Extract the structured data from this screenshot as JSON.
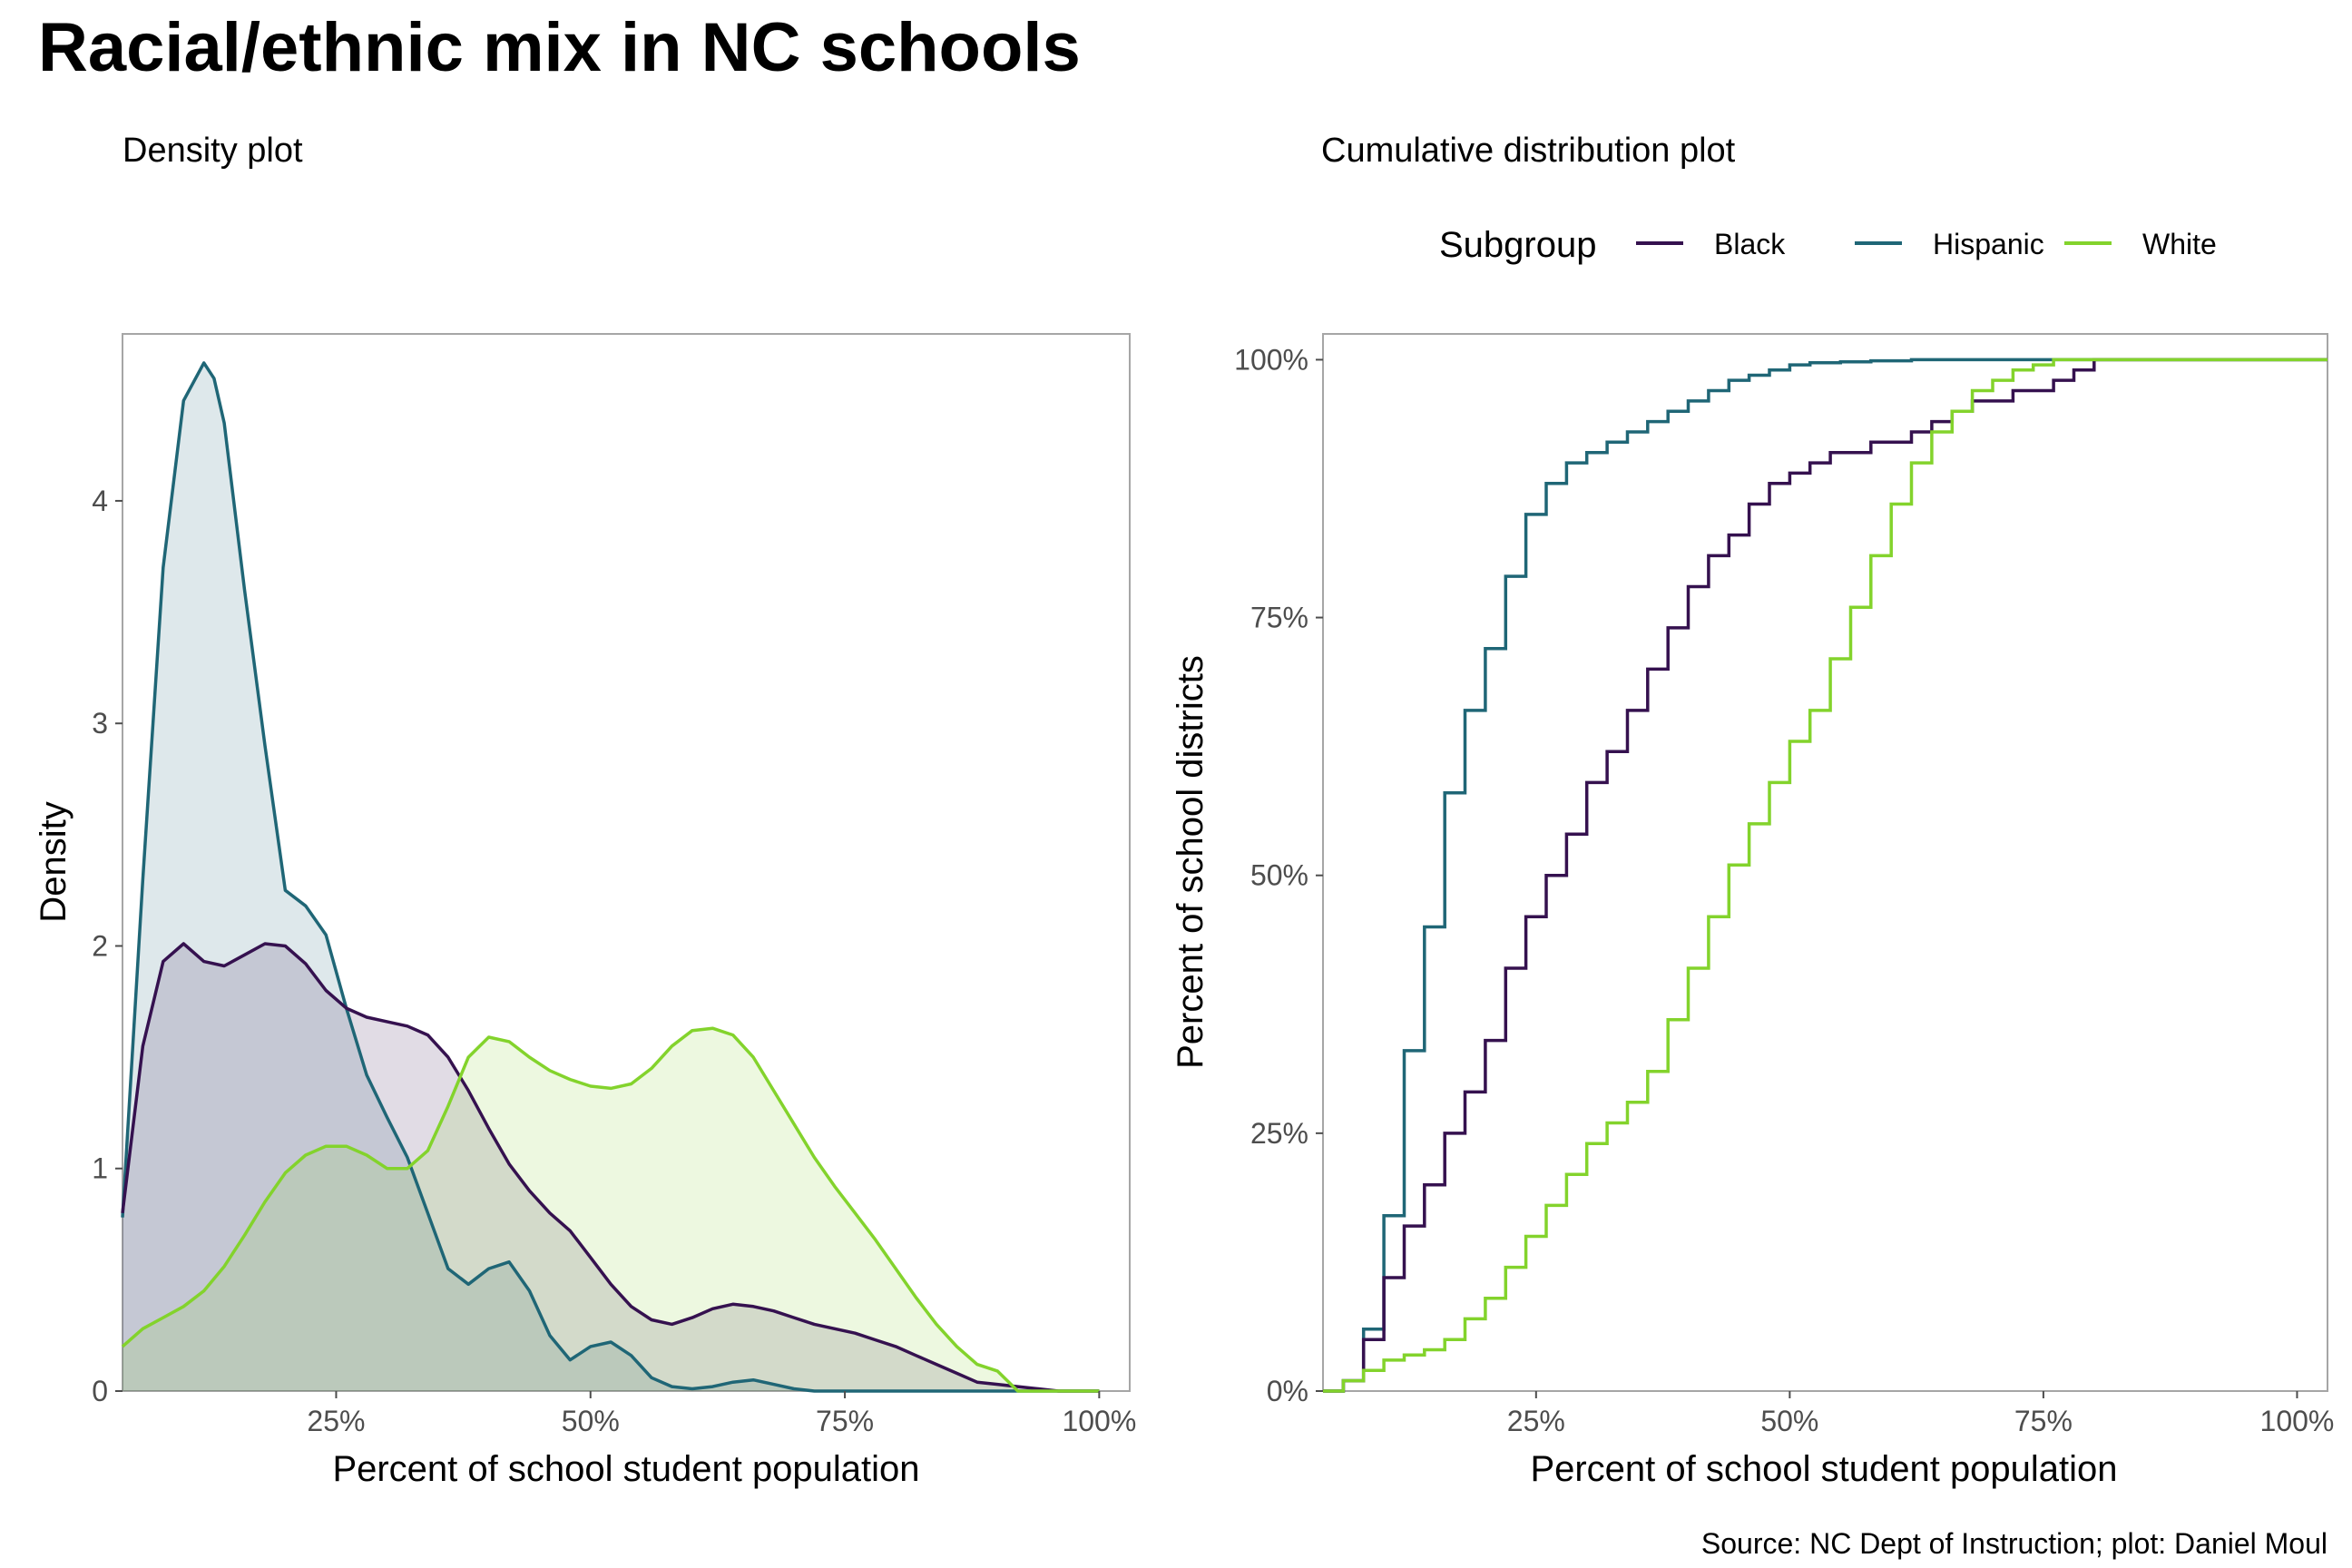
{
  "title": "Racial/ethnic mix in NC schools",
  "caption": "Source: NC Dept of Instruction; plot: Daniel Moul",
  "colors": {
    "Black": "#35114f",
    "Hispanic": "#1f6676",
    "White": "#83d32c",
    "panel_border": "#a6a6a6"
  },
  "legend": {
    "title": "Subgroup",
    "items": [
      "Black",
      "Hispanic",
      "White"
    ],
    "placement": "top, above right panel"
  },
  "chart_data": [
    {
      "type": "area",
      "subtitle": "Density plot",
      "xlabel": "Percent of school student population",
      "ylabel": "Density",
      "xlim": [
        0.04,
        1.03
      ],
      "ylim": [
        0,
        4.75
      ],
      "xticks": [
        0.25,
        0.5,
        0.75,
        1.0
      ],
      "xtick_labels": [
        "25%",
        "50%",
        "75%",
        "100%"
      ],
      "yticks": [
        0,
        1,
        2,
        3,
        4
      ],
      "ytick_labels": [
        "0",
        "1",
        "2",
        "3",
        "4"
      ],
      "grid": false,
      "series": [
        {
          "name": "Hispanic",
          "x": [
            0.04,
            0.06,
            0.08,
            0.1,
            0.12,
            0.13,
            0.14,
            0.16,
            0.18,
            0.2,
            0.22,
            0.24,
            0.26,
            0.28,
            0.3,
            0.32,
            0.34,
            0.36,
            0.38,
            0.4,
            0.42,
            0.44,
            0.46,
            0.48,
            0.5,
            0.52,
            0.54,
            0.56,
            0.58,
            0.6,
            0.62,
            0.64,
            0.66,
            0.68,
            0.7,
            0.72,
            0.74,
            0.76,
            0.8,
            0.9,
            1.0
          ],
          "y": [
            0.78,
            2.3,
            3.7,
            4.45,
            4.62,
            4.55,
            4.35,
            3.6,
            2.9,
            2.25,
            2.18,
            2.05,
            1.72,
            1.42,
            1.23,
            1.05,
            0.8,
            0.55,
            0.48,
            0.55,
            0.58,
            0.45,
            0.25,
            0.14,
            0.2,
            0.22,
            0.16,
            0.06,
            0.02,
            0.01,
            0.02,
            0.04,
            0.05,
            0.03,
            0.01,
            0.0,
            0.0,
            0.0,
            0.0,
            0.0,
            0.0
          ]
        },
        {
          "name": "Black",
          "x": [
            0.04,
            0.06,
            0.08,
            0.1,
            0.12,
            0.14,
            0.16,
            0.18,
            0.2,
            0.22,
            0.24,
            0.26,
            0.28,
            0.3,
            0.32,
            0.34,
            0.36,
            0.38,
            0.4,
            0.42,
            0.44,
            0.46,
            0.48,
            0.5,
            0.52,
            0.54,
            0.56,
            0.58,
            0.6,
            0.62,
            0.64,
            0.66,
            0.68,
            0.7,
            0.72,
            0.74,
            0.76,
            0.78,
            0.8,
            0.82,
            0.84,
            0.86,
            0.88,
            0.9,
            0.92,
            0.94,
            0.96,
            0.98,
            1.0
          ],
          "y": [
            0.8,
            1.55,
            1.93,
            2.01,
            1.93,
            1.91,
            1.96,
            2.01,
            2.0,
            1.92,
            1.8,
            1.72,
            1.68,
            1.66,
            1.64,
            1.6,
            1.5,
            1.35,
            1.18,
            1.02,
            0.9,
            0.8,
            0.72,
            0.6,
            0.48,
            0.38,
            0.32,
            0.3,
            0.33,
            0.37,
            0.39,
            0.38,
            0.36,
            0.33,
            0.3,
            0.28,
            0.26,
            0.23,
            0.2,
            0.16,
            0.12,
            0.08,
            0.04,
            0.03,
            0.02,
            0.01,
            0.0,
            0.0,
            0.0
          ]
        },
        {
          "name": "White",
          "x": [
            0.04,
            0.06,
            0.08,
            0.1,
            0.12,
            0.14,
            0.16,
            0.18,
            0.2,
            0.22,
            0.24,
            0.26,
            0.28,
            0.3,
            0.32,
            0.34,
            0.36,
            0.38,
            0.4,
            0.42,
            0.44,
            0.46,
            0.48,
            0.5,
            0.52,
            0.54,
            0.56,
            0.58,
            0.6,
            0.62,
            0.64,
            0.66,
            0.68,
            0.7,
            0.72,
            0.74,
            0.76,
            0.78,
            0.8,
            0.82,
            0.84,
            0.86,
            0.88,
            0.9,
            0.92,
            0.94,
            0.96,
            0.98,
            1.0
          ],
          "y": [
            0.2,
            0.28,
            0.33,
            0.38,
            0.45,
            0.56,
            0.7,
            0.85,
            0.98,
            1.06,
            1.1,
            1.1,
            1.06,
            1.0,
            1.0,
            1.08,
            1.28,
            1.5,
            1.59,
            1.57,
            1.5,
            1.44,
            1.4,
            1.37,
            1.36,
            1.38,
            1.45,
            1.55,
            1.62,
            1.63,
            1.6,
            1.5,
            1.35,
            1.2,
            1.05,
            0.92,
            0.8,
            0.68,
            0.55,
            0.42,
            0.3,
            0.2,
            0.12,
            0.09,
            0.0,
            0.0,
            0.0,
            0.0,
            0.0
          ]
        }
      ]
    },
    {
      "type": "line",
      "subtitle": "Cumulative distribution plot",
      "xlabel": "Percent of school student population",
      "ylabel": "Percent of school districts",
      "xlim": [
        0.04,
        1.03
      ],
      "ylim": [
        0,
        1.025
      ],
      "xticks": [
        0.25,
        0.5,
        0.75,
        1.0
      ],
      "xtick_labels": [
        "25%",
        "50%",
        "75%",
        "100%"
      ],
      "yticks": [
        0,
        0.25,
        0.5,
        0.75,
        1.0
      ],
      "ytick_labels": [
        "0%",
        "25%",
        "50%",
        "75%",
        "100%"
      ],
      "grid": false,
      "series": [
        {
          "name": "Hispanic",
          "x": [
            0.04,
            0.06,
            0.08,
            0.1,
            0.12,
            0.14,
            0.16,
            0.18,
            0.2,
            0.22,
            0.24,
            0.26,
            0.28,
            0.3,
            0.32,
            0.34,
            0.36,
            0.38,
            0.4,
            0.42,
            0.44,
            0.46,
            0.48,
            0.5,
            0.52,
            0.55,
            0.58,
            0.62,
            0.66,
            0.7,
            0.8,
            1.0
          ],
          "y": [
            0.0,
            0.01,
            0.06,
            0.17,
            0.33,
            0.45,
            0.58,
            0.66,
            0.72,
            0.79,
            0.85,
            0.88,
            0.9,
            0.91,
            0.92,
            0.93,
            0.94,
            0.95,
            0.96,
            0.97,
            0.98,
            0.985,
            0.99,
            0.995,
            0.997,
            0.998,
            0.999,
            1.0,
            1.0,
            1.0,
            1.0,
            1.0
          ]
        },
        {
          "name": "Black",
          "x": [
            0.04,
            0.06,
            0.08,
            0.1,
            0.12,
            0.14,
            0.16,
            0.18,
            0.2,
            0.22,
            0.24,
            0.26,
            0.28,
            0.3,
            0.32,
            0.34,
            0.36,
            0.38,
            0.4,
            0.42,
            0.44,
            0.46,
            0.48,
            0.5,
            0.52,
            0.54,
            0.56,
            0.58,
            0.6,
            0.62,
            0.64,
            0.66,
            0.68,
            0.7,
            0.72,
            0.74,
            0.76,
            0.78,
            0.8,
            0.82,
            0.84,
            0.86,
            0.88,
            0.9,
            0.92,
            0.94,
            0.96,
            0.98,
            1.0
          ],
          "y": [
            0.0,
            0.01,
            0.05,
            0.11,
            0.16,
            0.2,
            0.25,
            0.29,
            0.34,
            0.41,
            0.46,
            0.5,
            0.54,
            0.59,
            0.62,
            0.66,
            0.7,
            0.74,
            0.78,
            0.81,
            0.83,
            0.86,
            0.88,
            0.89,
            0.9,
            0.91,
            0.91,
            0.92,
            0.92,
            0.93,
            0.94,
            0.95,
            0.96,
            0.96,
            0.97,
            0.97,
            0.98,
            0.99,
            1.0,
            1.0,
            1.0,
            1.0,
            1.0,
            1.0,
            1.0,
            1.0,
            1.0,
            1.0,
            1.0
          ]
        },
        {
          "name": "White",
          "x": [
            0.04,
            0.06,
            0.08,
            0.1,
            0.12,
            0.14,
            0.16,
            0.18,
            0.2,
            0.22,
            0.24,
            0.26,
            0.28,
            0.3,
            0.32,
            0.34,
            0.36,
            0.38,
            0.4,
            0.42,
            0.44,
            0.46,
            0.48,
            0.5,
            0.52,
            0.54,
            0.56,
            0.58,
            0.6,
            0.62,
            0.64,
            0.66,
            0.68,
            0.7,
            0.72,
            0.74,
            0.76,
            0.78,
            0.8,
            0.82,
            0.84,
            0.86,
            0.88,
            0.9,
            0.92,
            0.94,
            0.96,
            0.98,
            1.0
          ],
          "y": [
            0.0,
            0.01,
            0.02,
            0.03,
            0.035,
            0.04,
            0.05,
            0.07,
            0.09,
            0.12,
            0.15,
            0.18,
            0.21,
            0.24,
            0.26,
            0.28,
            0.31,
            0.36,
            0.41,
            0.46,
            0.51,
            0.55,
            0.59,
            0.63,
            0.66,
            0.71,
            0.76,
            0.81,
            0.86,
            0.9,
            0.93,
            0.95,
            0.97,
            0.98,
            0.99,
            0.995,
            1.0,
            1.0,
            1.0,
            1.0,
            1.0,
            1.0,
            1.0,
            1.0,
            1.0,
            1.0,
            1.0,
            1.0,
            1.0
          ]
        }
      ]
    }
  ]
}
